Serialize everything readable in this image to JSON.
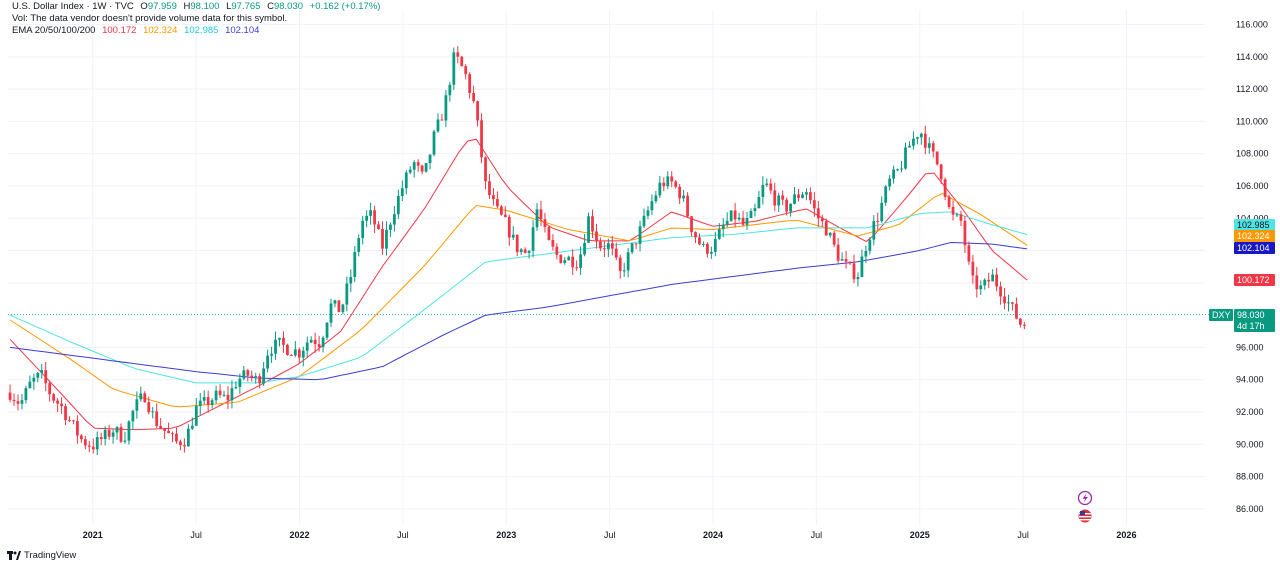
{
  "legend": {
    "symbol": "U.S. Dollar Index · 1W · TVC",
    "open_k": "O",
    "open": "97.959",
    "high_k": "H",
    "high": "98.100",
    "low_k": "L",
    "low": "97.765",
    "close_k": "C",
    "close": "98.030",
    "change": "+0.162 (+0.17%)",
    "vol_note": "Vol: The data vendor doesn't provide volume data for this symbol.",
    "ema_label": "EMA 20/50/100/200",
    "ema20": "100.172",
    "ema50": "102.324",
    "ema100": "102.985",
    "ema200": "102.104"
  },
  "price_tag": {
    "ticker": "DXY",
    "price": "98.030",
    "countdown": "4d 17h"
  },
  "branding": "TradingView",
  "colors": {
    "up": "#089981",
    "down": "#f23645",
    "ema20": "#f23645",
    "ema50": "#ff9800",
    "ema100": "#4fe3e3",
    "ema200": "#3c3cd6",
    "ema200_tag": "#1717c4",
    "grid": "#f0f3fa"
  },
  "chart_data": {
    "type": "candlestick",
    "title": "U.S. Dollar Index · 1W · TVC",
    "ylim": [
      85.0,
      116.9
    ],
    "y_ticks": [
      "116.000",
      "114.000",
      "112.000",
      "110.000",
      "108.000",
      "106.000",
      "104.000",
      "102.000",
      "100.000",
      "98.000",
      "96.000",
      "94.000",
      "92.000",
      "90.000",
      "88.000",
      "86.000"
    ],
    "x_ticks": [
      {
        "label": "2021",
        "t": 2021.0,
        "bold": true
      },
      {
        "label": "Jul",
        "t": 2021.5,
        "bold": false
      },
      {
        "label": "2022",
        "t": 2022.0,
        "bold": true
      },
      {
        "label": "Jul",
        "t": 2022.5,
        "bold": false
      },
      {
        "label": "2023",
        "t": 2023.0,
        "bold": true
      },
      {
        "label": "Jul",
        "t": 2023.5,
        "bold": false
      },
      {
        "label": "2024",
        "t": 2024.0,
        "bold": true
      },
      {
        "label": "Jul",
        "t": 2024.5,
        "bold": false
      },
      {
        "label": "2025",
        "t": 2025.0,
        "bold": true
      },
      {
        "label": "Jul",
        "t": 2025.5,
        "bold": false
      },
      {
        "label": "2026",
        "t": 2026.0,
        "bold": true
      }
    ],
    "xlim": [
      2020.59,
      2026.38
    ],
    "close_anchors": [
      [
        2020.6,
        93.2
      ],
      [
        2020.65,
        92.5
      ],
      [
        2020.7,
        93.8
      ],
      [
        2020.75,
        94.3
      ],
      [
        2020.8,
        93.0
      ],
      [
        2020.85,
        92.3
      ],
      [
        2020.9,
        91.2
      ],
      [
        2020.95,
        90.2
      ],
      [
        2021.0,
        89.9
      ],
      [
        2021.05,
        90.4
      ],
      [
        2021.1,
        90.9
      ],
      [
        2021.15,
        90.4
      ],
      [
        2021.2,
        92.2
      ],
      [
        2021.25,
        93.1
      ],
      [
        2021.3,
        91.5
      ],
      [
        2021.35,
        90.8
      ],
      [
        2021.4,
        90.1
      ],
      [
        2021.45,
        90.3
      ],
      [
        2021.5,
        92.2
      ],
      [
        2021.55,
        92.6
      ],
      [
        2021.6,
        93.0
      ],
      [
        2021.65,
        92.8
      ],
      [
        2021.7,
        94.0
      ],
      [
        2021.75,
        94.3
      ],
      [
        2021.8,
        93.9
      ],
      [
        2021.85,
        95.9
      ],
      [
        2021.9,
        96.2
      ],
      [
        2021.95,
        95.9
      ],
      [
        2022.0,
        95.7
      ],
      [
        2022.05,
        96.6
      ],
      [
        2022.1,
        96.3
      ],
      [
        2022.15,
        98.6
      ],
      [
        2022.2,
        98.3
      ],
      [
        2022.25,
        100.5
      ],
      [
        2022.3,
        103.8
      ],
      [
        2022.35,
        104.2
      ],
      [
        2022.4,
        102.2
      ],
      [
        2022.45,
        104.3
      ],
      [
        2022.5,
        106.0
      ],
      [
        2022.55,
        107.5
      ],
      [
        2022.6,
        106.4
      ],
      [
        2022.65,
        109.0
      ],
      [
        2022.7,
        110.8
      ],
      [
        2022.75,
        114.1
      ],
      [
        2022.8,
        113.0
      ],
      [
        2022.85,
        110.8
      ],
      [
        2022.9,
        106.0
      ],
      [
        2022.95,
        104.5
      ],
      [
        2023.0,
        103.6
      ],
      [
        2023.05,
        102.2
      ],
      [
        2023.1,
        101.8
      ],
      [
        2023.15,
        104.6
      ],
      [
        2023.2,
        102.5
      ],
      [
        2023.25,
        101.6
      ],
      [
        2023.3,
        101.5
      ],
      [
        2023.35,
        101.3
      ],
      [
        2023.4,
        104.1
      ],
      [
        2023.45,
        102.3
      ],
      [
        2023.5,
        102.3
      ],
      [
        2023.55,
        100.5
      ],
      [
        2023.6,
        101.9
      ],
      [
        2023.65,
        103.3
      ],
      [
        2023.7,
        104.9
      ],
      [
        2023.75,
        106.2
      ],
      [
        2023.8,
        106.2
      ],
      [
        2023.85,
        105.4
      ],
      [
        2023.9,
        103.3
      ],
      [
        2023.95,
        102.1
      ],
      [
        2024.0,
        102.2
      ],
      [
        2024.05,
        103.5
      ],
      [
        2024.1,
        104.2
      ],
      [
        2024.15,
        103.5
      ],
      [
        2024.2,
        104.3
      ],
      [
        2024.25,
        106.2
      ],
      [
        2024.3,
        105.2
      ],
      [
        2024.35,
        104.6
      ],
      [
        2024.4,
        105.3
      ],
      [
        2024.45,
        105.8
      ],
      [
        2024.5,
        104.2
      ],
      [
        2024.55,
        103.3
      ],
      [
        2024.6,
        101.8
      ],
      [
        2024.65,
        100.9
      ],
      [
        2024.7,
        100.5
      ],
      [
        2024.75,
        102.8
      ],
      [
        2024.8,
        104.2
      ],
      [
        2024.85,
        106.2
      ],
      [
        2024.9,
        107.0
      ],
      [
        2024.95,
        108.5
      ],
      [
        2025.0,
        109.5
      ],
      [
        2025.05,
        108.2
      ],
      [
        2025.1,
        107.0
      ],
      [
        2025.15,
        104.1
      ],
      [
        2025.2,
        103.8
      ],
      [
        2025.25,
        100.1
      ],
      [
        2025.3,
        99.6
      ],
      [
        2025.35,
        100.4
      ],
      [
        2025.4,
        99.4
      ],
      [
        2025.45,
        98.3
      ],
      [
        2025.5,
        97.2
      ],
      [
        2025.52,
        98.03
      ]
    ],
    "ema_anchors": {
      "EMA20": [
        [
          2020.6,
          96.5
        ],
        [
          2020.85,
          93.1
        ],
        [
          2021.0,
          91.0
        ],
        [
          2021.2,
          90.9
        ],
        [
          2021.4,
          91.0
        ],
        [
          2021.6,
          92.3
        ],
        [
          2021.8,
          93.6
        ],
        [
          2022.0,
          95.0
        ],
        [
          2022.2,
          97.0
        ],
        [
          2022.4,
          101.0
        ],
        [
          2022.6,
          104.5
        ],
        [
          2022.8,
          108.7
        ],
        [
          2022.85,
          109.0
        ],
        [
          2023.0,
          106.0
        ],
        [
          2023.2,
          103.5
        ],
        [
          2023.4,
          102.6
        ],
        [
          2023.6,
          102.6
        ],
        [
          2023.8,
          104.4
        ],
        [
          2024.0,
          103.5
        ],
        [
          2024.2,
          103.8
        ],
        [
          2024.45,
          104.6
        ],
        [
          2024.6,
          103.5
        ],
        [
          2024.75,
          102.5
        ],
        [
          2024.95,
          105.5
        ],
        [
          2025.05,
          107.1
        ],
        [
          2025.2,
          104.7
        ],
        [
          2025.35,
          102.0
        ],
        [
          2025.52,
          100.17
        ]
      ],
      "EMA50": [
        [
          2020.6,
          97.7
        ],
        [
          2020.9,
          95.2
        ],
        [
          2021.1,
          93.4
        ],
        [
          2021.4,
          92.3
        ],
        [
          2021.7,
          92.6
        ],
        [
          2022.0,
          94.2
        ],
        [
          2022.3,
          97.1
        ],
        [
          2022.6,
          101.0
        ],
        [
          2022.85,
          104.8
        ],
        [
          2023.0,
          104.5
        ],
        [
          2023.3,
          103.3
        ],
        [
          2023.6,
          102.6
        ],
        [
          2023.8,
          103.4
        ],
        [
          2024.0,
          103.3
        ],
        [
          2024.4,
          103.9
        ],
        [
          2024.7,
          102.9
        ],
        [
          2024.9,
          103.6
        ],
        [
          2025.1,
          105.6
        ],
        [
          2025.3,
          104.2
        ],
        [
          2025.52,
          102.32
        ]
      ],
      "EMA100": [
        [
          2020.6,
          98.0
        ],
        [
          2020.9,
          96.3
        ],
        [
          2021.2,
          94.7
        ],
        [
          2021.5,
          93.8
        ],
        [
          2021.8,
          93.8
        ],
        [
          2022.0,
          94.2
        ],
        [
          2022.3,
          95.4
        ],
        [
          2022.6,
          98.3
        ],
        [
          2022.9,
          101.3
        ],
        [
          2023.2,
          101.8
        ],
        [
          2023.5,
          102.3
        ],
        [
          2023.8,
          102.8
        ],
        [
          2024.1,
          103.0
        ],
        [
          2024.4,
          103.4
        ],
        [
          2024.75,
          103.4
        ],
        [
          2025.0,
          104.3
        ],
        [
          2025.15,
          104.4
        ],
        [
          2025.35,
          103.6
        ],
        [
          2025.52,
          102.99
        ]
      ],
      "EMA200": [
        [
          2020.6,
          96.0
        ],
        [
          2020.9,
          95.5
        ],
        [
          2021.2,
          95.0
        ],
        [
          2021.5,
          94.5
        ],
        [
          2021.8,
          94.1
        ],
        [
          2022.1,
          94.0
        ],
        [
          2022.4,
          94.8
        ],
        [
          2022.7,
          96.8
        ],
        [
          2022.9,
          98.0
        ],
        [
          2023.2,
          98.5
        ],
        [
          2023.5,
          99.2
        ],
        [
          2023.8,
          99.9
        ],
        [
          2024.1,
          100.4
        ],
        [
          2024.4,
          100.9
        ],
        [
          2024.7,
          101.3
        ],
        [
          2025.0,
          102.0
        ],
        [
          2025.15,
          102.5
        ],
        [
          2025.35,
          102.4
        ],
        [
          2025.52,
          102.1
        ]
      ]
    },
    "current_price": 98.03
  }
}
